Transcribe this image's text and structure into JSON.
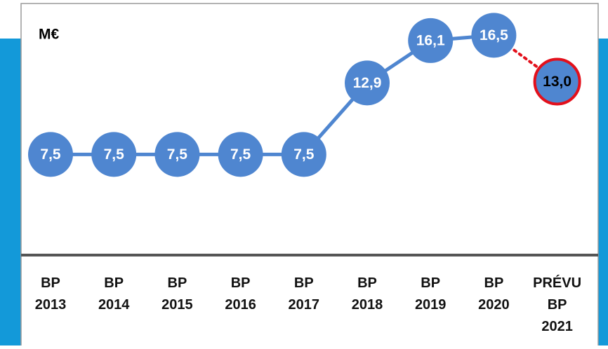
{
  "chart_data": {
    "type": "line",
    "unit": "M€",
    "categories": [
      "BP 2013",
      "BP 2014",
      "BP 2015",
      "BP 2016",
      "BP 2017",
      "BP 2018",
      "BP 2019",
      "BP 2020",
      "PRÉVU BP 2021"
    ],
    "values": [
      7.5,
      7.5,
      7.5,
      7.5,
      7.5,
      12.9,
      16.1,
      16.5,
      13.0
    ],
    "value_labels": [
      "7,5",
      "7,5",
      "7,5",
      "7,5",
      "7,5",
      "12,9",
      "16,1",
      "16,5",
      "13,0"
    ],
    "color": "#4f86d0",
    "forecast_color": "#e3101b",
    "ylim": [
      0,
      18
    ]
  }
}
